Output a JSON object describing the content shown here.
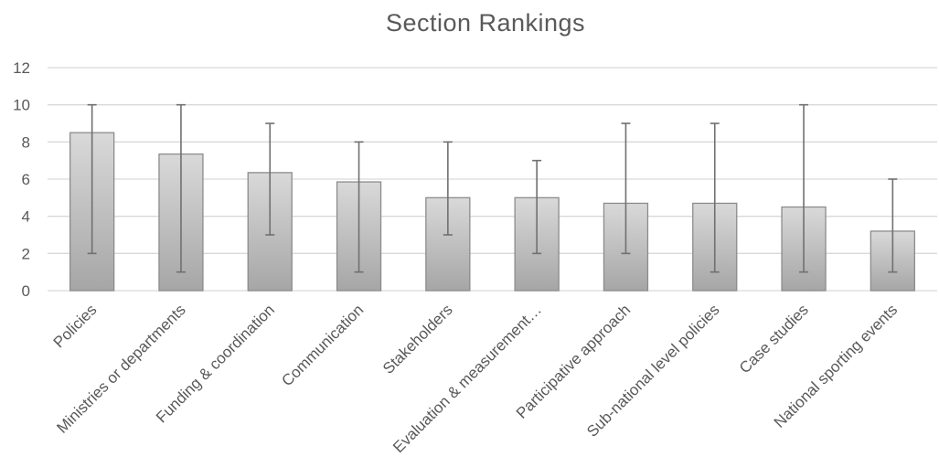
{
  "chart_data": {
    "type": "bar",
    "title": "Section Rankings",
    "xlabel": "",
    "ylabel": "",
    "ylim": [
      0,
      12
    ],
    "yticks": [
      0,
      2,
      4,
      6,
      8,
      10,
      12
    ],
    "grid": true,
    "legend": "none",
    "categories": [
      "Policies",
      "Ministries or departments",
      "Funding & coordination",
      "Communication",
      "Stakeholders",
      "Evaluation & measurement…",
      "Participative approach",
      "Sub-national level policies",
      "Case studies",
      "National sporting events"
    ],
    "values": [
      8.5,
      7.35,
      6.35,
      5.85,
      5.0,
      5.0,
      4.7,
      4.7,
      4.5,
      3.2
    ],
    "error_low": [
      2,
      1,
      3,
      1,
      3,
      2,
      2,
      1,
      1,
      1
    ],
    "error_high": [
      10,
      10,
      9,
      8,
      8,
      7,
      9,
      9,
      10,
      6
    ],
    "colors": {
      "bar_top": "#d9d9d9",
      "bar_bottom": "#a6a6a6",
      "bar_border": "#8c8c8c",
      "error_bar": "#707070",
      "gridline": "#d9d9d9",
      "text": "#595959"
    }
  }
}
